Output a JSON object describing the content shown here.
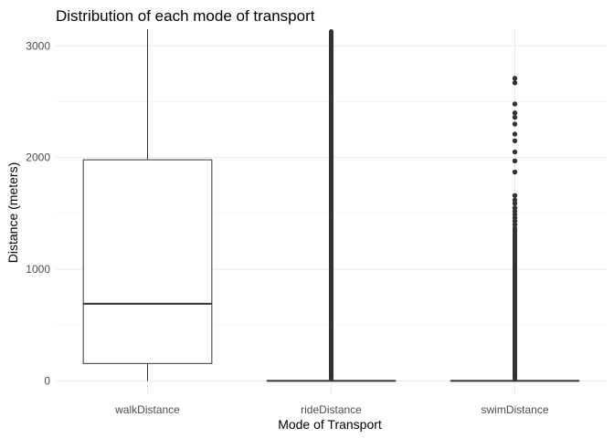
{
  "chart_data": {
    "type": "boxplot",
    "title": "Distribution of each mode of transport",
    "xlabel": "Mode of Transport",
    "ylabel": "Distance (meters)",
    "ylim": [
      -120,
      3150
    ],
    "y_ticks": [
      0,
      1000,
      2000,
      3000
    ],
    "grid": true,
    "categories": [
      "walkDistance",
      "rideDistance",
      "swimDistance"
    ],
    "boxes": [
      {
        "category": "walkDistance",
        "whisker_low": 0,
        "q1": 155,
        "median": 690,
        "q3": 1980,
        "whisker_high": 3150,
        "outliers": [],
        "outlier_band": null
      },
      {
        "category": "rideDistance",
        "whisker_low": 0,
        "q1": 0,
        "median": 0,
        "q3": 0,
        "whisker_high": 0,
        "outliers": [],
        "outlier_band": [
          0,
          3150
        ]
      },
      {
        "category": "swimDistance",
        "whisker_low": 0,
        "q1": 0,
        "median": 0,
        "q3": 0,
        "whisker_high": 0,
        "outliers": [
          2710,
          2670,
          2480,
          2400,
          2360,
          2300,
          2210,
          2150,
          2050,
          1970,
          1870,
          1660,
          1620,
          1590,
          1550,
          1520,
          1490,
          1460,
          1430,
          1400
        ],
        "outlier_band": [
          0,
          1390
        ]
      }
    ]
  }
}
